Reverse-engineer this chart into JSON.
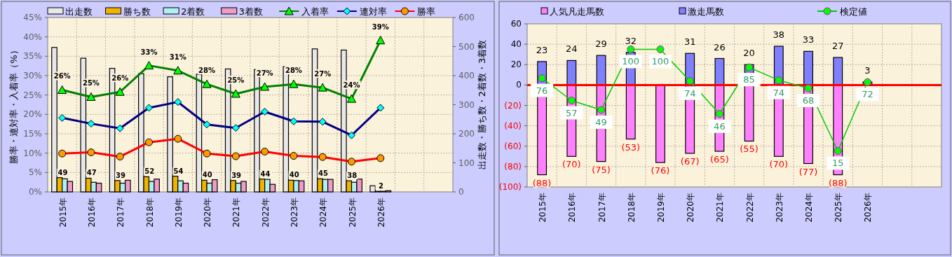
{
  "chart_data": [
    {
      "type": "bar",
      "ylabel": "勝率・連対率・入着率（%）",
      "y2label": "出走数・勝ち数・2着数・3着数",
      "categories": [
        "2015年",
        "2016年",
        "2017年",
        "2018年",
        "2019年",
        "2020年",
        "2021年",
        "2022年",
        "2023年",
        "2024年",
        "2025年",
        "2026年",
        null,
        null
      ],
      "ylim": [
        0,
        45
      ],
      "yticks": [
        {
          "value": 0,
          "label": "0%"
        },
        {
          "value": 5,
          "label": "5%"
        },
        {
          "value": 10,
          "label": "10%"
        },
        {
          "value": 15,
          "label": "15%"
        },
        {
          "value": 20,
          "label": "20%"
        },
        {
          "value": 25,
          "label": "25%"
        },
        {
          "value": 30,
          "label": "30%"
        },
        {
          "value": 35,
          "label": "35%"
        },
        {
          "value": 40,
          "label": "40%"
        },
        {
          "value": 45,
          "label": "45%"
        }
      ],
      "y2lim": [
        0,
        600
      ],
      "y2ticks": [
        0,
        100,
        200,
        300,
        400,
        500,
        600
      ],
      "grid": true,
      "legend": "top",
      "series": [
        {
          "name": "出走数",
          "axis": "y2",
          "color": "#e8e8e8",
          "values": [
            497,
            460,
            425,
            407,
            396,
            405,
            423,
            421,
            431,
            492,
            488,
            21,
            null,
            null
          ]
        },
        {
          "name": "勝ち数",
          "axis": "y2",
          "color": "#f0b400",
          "values": [
            49,
            47,
            39,
            52,
            54,
            40,
            39,
            44,
            40,
            45,
            38,
            2,
            null,
            null
          ],
          "value_labels": [
            "49",
            "47",
            "39",
            "52",
            "54",
            "40",
            "39",
            "44",
            "40",
            "45",
            "38",
            "2",
            null,
            null
          ]
        },
        {
          "name": "2着数",
          "axis": "y2",
          "color": "#b0f0f0",
          "values": [
            45,
            33,
            30,
            36,
            38,
            30,
            30,
            43,
            39,
            43,
            33,
            2,
            null,
            null
          ]
        },
        {
          "name": "3着数",
          "axis": "y2",
          "color": "#f09cc8",
          "values": [
            36,
            30,
            40,
            44,
            30,
            42,
            36,
            26,
            38,
            43,
            44,
            4,
            null,
            null
          ]
        },
        {
          "name": "入着率",
          "type": "line",
          "marker": "triangle",
          "color": "#008000",
          "values": [
            26.3,
            24.5,
            25.8,
            32.6,
            31.3,
            27.8,
            25.3,
            27.1,
            27.8,
            26.9,
            24.0,
            39.1,
            null,
            null
          ],
          "value_labels": [
            "26%",
            "25%",
            "26%",
            "33%",
            "31%",
            "28%",
            "25%",
            "27%",
            "28%",
            "27%",
            "24%",
            "39%",
            null,
            null
          ]
        },
        {
          "name": "連対率",
          "type": "line",
          "marker": "diamond",
          "color": "#000080",
          "values": [
            19.1,
            17.6,
            16.4,
            21.7,
            23.2,
            17.4,
            16.5,
            20.7,
            18.2,
            18.1,
            14.6,
            21.7,
            null,
            null
          ]
        },
        {
          "name": "勝率",
          "type": "line",
          "marker": "circle",
          "color": "#ff0000",
          "values": [
            9.9,
            10.2,
            9.1,
            12.8,
            13.7,
            9.9,
            9.2,
            10.4,
            9.3,
            9.0,
            7.8,
            8.7,
            null,
            null
          ]
        }
      ]
    },
    {
      "type": "bar",
      "stacked": true,
      "categories": [
        "2015年",
        "2016年",
        "2017年",
        "2018年",
        "2019年",
        "2020年",
        "2021年",
        "2022年",
        "2023年",
        "2024年",
        "2025年",
        "2026年",
        null,
        null
      ],
      "ylim": [
        -100,
        60
      ],
      "yticks": [
        {
          "value": -100,
          "label": "(100)"
        },
        {
          "value": -80,
          "label": "(80)"
        },
        {
          "value": -60,
          "label": "(60)"
        },
        {
          "value": -40,
          "label": "(40)"
        },
        {
          "value": -20,
          "label": "(20)"
        },
        0,
        20,
        40,
        60
      ],
      "grid": true,
      "legend": "top",
      "ref_lines": [
        {
          "axis": "y",
          "value": 0,
          "color": "#ff0000"
        }
      ],
      "series": [
        {
          "name": "人気凡走馬数",
          "color": "#ff80ff",
          "values": [
            -88,
            -70,
            -75,
            -53,
            -76,
            -67,
            -65,
            -55,
            -70,
            -77,
            -88,
            null,
            null,
            null
          ],
          "value_labels": [
            "(88)",
            "(70)",
            "(75)",
            "(53)",
            "(76)",
            "(67)",
            "(65)",
            "(55)",
            "(70)",
            "(77)",
            "(88)",
            null,
            null,
            null
          ]
        },
        {
          "name": "激走馬数",
          "color": "#8080ff",
          "values": [
            23,
            24,
            29,
            32,
            null,
            31,
            26,
            20,
            38,
            33,
            27,
            3,
            null,
            null
          ],
          "value_labels": [
            "23",
            "24",
            "29",
            "32",
            null,
            "31",
            "26",
            "20",
            "38",
            "33",
            "27",
            "3",
            null,
            null
          ]
        },
        {
          "name": "検定値",
          "type": "line",
          "marker": "circle",
          "color": "#00cc00",
          "values": [
            6.7,
            -15.2,
            -24.5,
            35,
            35,
            3.9,
            -28.4,
            17.3,
            4.6,
            -3.2,
            -64.6,
            2.8,
            null,
            null
          ]
        }
      ],
      "annotations": [
        {
          "text": "76",
          "x": "2015年",
          "y": 6.7
        },
        {
          "text": "57",
          "x": "2016年",
          "y": -15.2
        },
        {
          "text": "49",
          "x": "2017年",
          "y": -24.5
        },
        {
          "text": "100",
          "x": "2018年",
          "y": 35
        },
        {
          "text": "100",
          "x": "2019年",
          "y": 35
        },
        {
          "text": "74",
          "x": "2020年",
          "y": 3.9
        },
        {
          "text": "46",
          "x": "2021年",
          "y": -28.4
        },
        {
          "text": "85",
          "x": "2022年",
          "y": 17.3
        },
        {
          "text": "74",
          "x": "2023年",
          "y": 4.6
        },
        {
          "text": "68",
          "x": "2024年",
          "y": -3.2
        },
        {
          "text": "15",
          "x": "2025年",
          "y": -64.6
        },
        {
          "text": "72",
          "x": "2026年",
          "y": 2.8
        }
      ]
    }
  ]
}
